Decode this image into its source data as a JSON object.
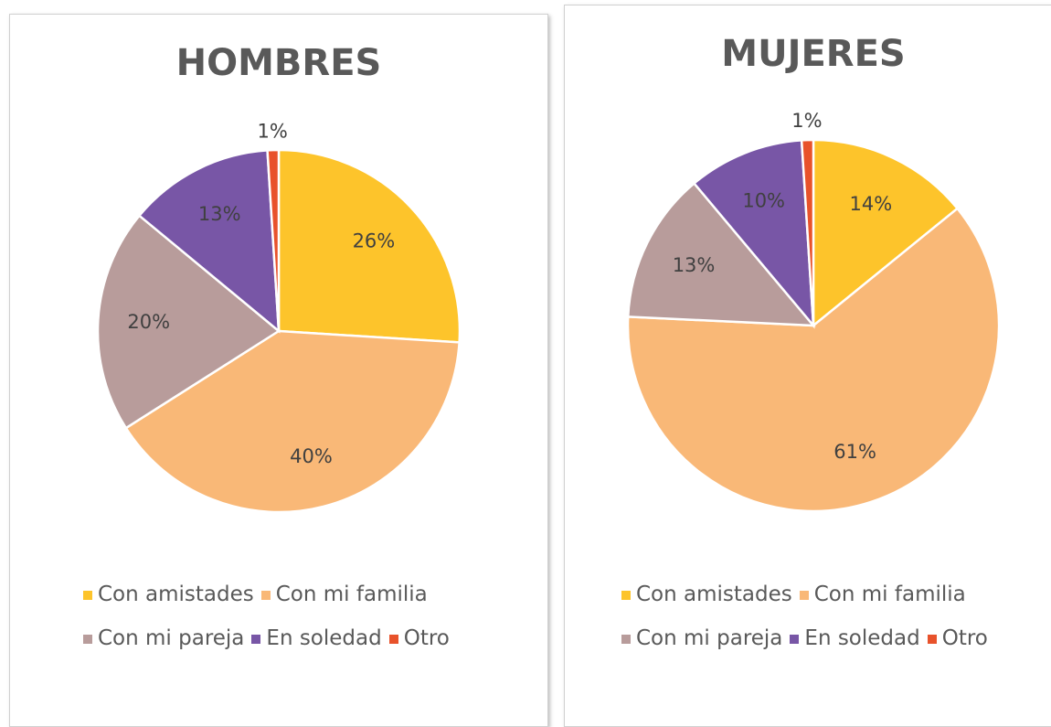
{
  "chart_data": [
    {
      "type": "pie",
      "title": "HOMBRES",
      "categories": [
        "Con amistades",
        "Con mi familia",
        "Con mi pareja",
        "En soledad",
        "Otro"
      ],
      "values": [
        26,
        40,
        20,
        13,
        1
      ],
      "value_labels": [
        "26%",
        "40%",
        "20%",
        "13%",
        "1%"
      ],
      "colors": [
        "#fdc42b",
        "#f9b877",
        "#b89c9b",
        "#7856a6",
        "#e8522b"
      ]
    },
    {
      "type": "pie",
      "title": "MUJERES",
      "categories": [
        "Con amistades",
        "Con mi familia",
        "Con mi pareja",
        "En soledad",
        "Otro"
      ],
      "values": [
        14,
        61,
        13,
        10,
        1
      ],
      "value_labels": [
        "14%",
        "61%",
        "13%",
        "10%",
        "1%"
      ],
      "colors": [
        "#fdc42b",
        "#f9b877",
        "#b89c9b",
        "#7856a6",
        "#e8522b"
      ]
    }
  ]
}
